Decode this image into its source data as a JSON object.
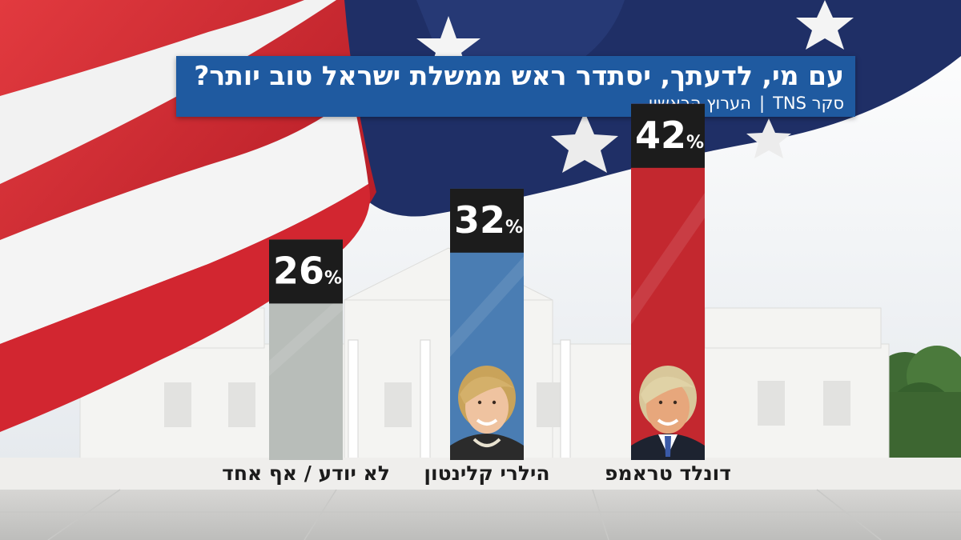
{
  "header": {
    "title": "עם מי, לדעתך, יסתדר ראש ממשלת ישראל טוב יותר?",
    "source_poll": "סקר TNS",
    "separator": "|",
    "source_channel": "הערוץ הראשון"
  },
  "chart_data": {
    "type": "bar",
    "categories": [
      "לא יודע / אף אחד",
      "הילרי קלינטון",
      "דונלד טראמפ"
    ],
    "values": [
      26,
      32,
      42
    ],
    "value_suffix": "%",
    "ylim": [
      0,
      100
    ],
    "colors": [
      "#b8bdb9",
      "#4a7db3",
      "#c3282f"
    ],
    "photo_icons": [
      "",
      "hillary-clinton-portrait-icon",
      "donald-trump-portrait-icon"
    ]
  },
  "colors": {
    "header_bg": "#1f5aa0",
    "label_box": "#1c1c1c",
    "flag_red": "#c8202b",
    "flag_blue": "#1f2f66"
  }
}
